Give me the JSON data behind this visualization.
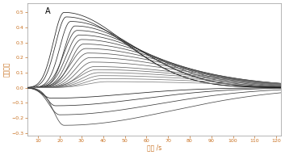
{
  "title": "A",
  "xlabel": "时间 /s",
  "ylabel": "信号强度",
  "xlim": [
    5,
    122
  ],
  "ylim": [
    -0.32,
    0.56
  ],
  "xticks": [
    10,
    20,
    30,
    40,
    50,
    60,
    70,
    80,
    90,
    100,
    110,
    120
  ],
  "yticks": [
    -0.3,
    -0.2,
    -0.1,
    0.0,
    0.1,
    0.2,
    0.3,
    0.4,
    0.5
  ],
  "bg_color": "#ffffff",
  "tick_color": "#c87020",
  "label_color": "#c87020",
  "spine_color": "#999999",
  "positive_amps": [
    0.5,
    0.47,
    0.44,
    0.41,
    0.38,
    0.35,
    0.32,
    0.29,
    0.26,
    0.23,
    0.2,
    0.17,
    0.14,
    0.12,
    0.1,
    0.08,
    0.06,
    0.04
  ],
  "positive_peaks": [
    22,
    23,
    25,
    27,
    28,
    29,
    30,
    31,
    32,
    33,
    34,
    35,
    36,
    37,
    38,
    39,
    40,
    42
  ],
  "positive_rise": [
    5,
    5,
    5,
    5,
    6,
    6,
    6,
    6,
    7,
    7,
    7,
    7,
    7,
    8,
    8,
    8,
    8,
    9
  ],
  "positive_decay": [
    28,
    28,
    30,
    30,
    32,
    34,
    36,
    38,
    40,
    42,
    44,
    46,
    48,
    50,
    52,
    54,
    56,
    58
  ],
  "negative_amps": [
    -0.07,
    -0.12,
    -0.18,
    -0.25
  ],
  "negative_peaks": [
    16,
    18,
    20,
    22
  ],
  "negative_rise": [
    4,
    4,
    5,
    5
  ],
  "negative_decay": [
    35,
    40,
    45,
    50
  ]
}
